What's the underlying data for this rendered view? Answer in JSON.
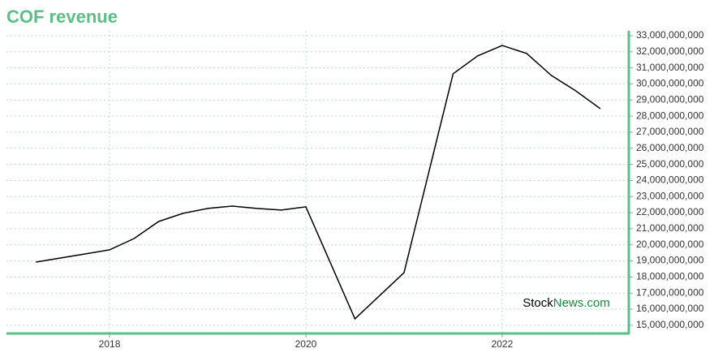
{
  "chart_data": {
    "type": "line",
    "title": "COF revenue",
    "x": [
      2017.25,
      2017.5,
      2017.75,
      2018.0,
      2018.25,
      2018.5,
      2018.75,
      2019.0,
      2019.25,
      2019.5,
      2019.75,
      2020.0,
      2020.5,
      2021.0,
      2021.5,
      2021.75,
      2022.0,
      2022.25,
      2022.5,
      2022.75,
      2023.0
    ],
    "series": [
      {
        "name": "COF revenue",
        "color": "#000000",
        "values": [
          18930000000,
          19180000000,
          19430000000,
          19690000000,
          20390000000,
          21450000000,
          21960000000,
          22260000000,
          22410000000,
          22260000000,
          22160000000,
          22360000000,
          15400000000,
          18270000000,
          30630000000,
          31740000000,
          32390000000,
          31890000000,
          30530000000,
          29570000000,
          28460000000
        ]
      }
    ],
    "xlim": [
      2016.95,
      2023.29
    ],
    "xticks": [
      2018,
      2020,
      2022
    ],
    "ylim": [
      14490000000,
      33300000000
    ],
    "yticks": [
      {
        "value": 15000000000,
        "label": "15,000,000,000"
      },
      {
        "value": 16000000000,
        "label": "16,000,000,000"
      },
      {
        "value": 17000000000,
        "label": "17,000,000,000"
      },
      {
        "value": 18000000000,
        "label": "18,000,000,000"
      },
      {
        "value": 19000000000,
        "label": "19,000,000,000"
      },
      {
        "value": 20000000000,
        "label": "20,000,000,000"
      },
      {
        "value": 21000000000,
        "label": "21,000,000,000"
      },
      {
        "value": 22000000000,
        "label": "22,000,000,000"
      },
      {
        "value": 23000000000,
        "label": "23,000,000,000"
      },
      {
        "value": 24000000000,
        "label": "24,000,000,000"
      },
      {
        "value": 25000000000,
        "label": "25,000,000,000"
      },
      {
        "value": 26000000000,
        "label": "26,000,000,000"
      },
      {
        "value": 27000000000,
        "label": "27,000,000,000"
      },
      {
        "value": 28000000000,
        "label": "28,000,000,000"
      },
      {
        "value": 29000000000,
        "label": "29,000,000,000"
      },
      {
        "value": 30000000000,
        "label": "30,000,000,000"
      },
      {
        "value": 31000000000,
        "label": "31,000,000,000"
      },
      {
        "value": 32000000000,
        "label": "32,000,000,000"
      },
      {
        "value": 33000000000,
        "label": "33,000,000,000"
      }
    ],
    "grid": true,
    "axis_color": "#5cbf87",
    "watermark": {
      "brand": "Stock",
      "site": "News.com"
    }
  }
}
